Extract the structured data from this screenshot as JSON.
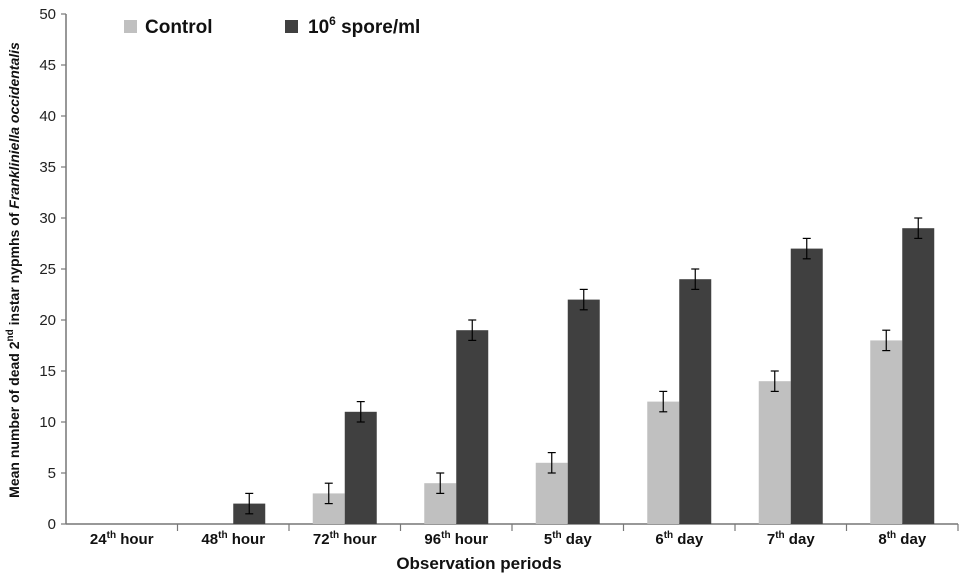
{
  "chart_data": {
    "type": "bar",
    "xlabel": "Observation periods",
    "ylabel": {
      "prefix": "Mean number of dead 2",
      "sup": "nd",
      "middle": " instar  nypmhs of ",
      "italic": "Frankliniella occidentalis"
    },
    "ylim": [
      0,
      50
    ],
    "yticks": [
      0,
      5,
      10,
      15,
      20,
      25,
      30,
      35,
      40,
      45,
      50
    ],
    "grid": false,
    "legend_position": "top-left",
    "categories": [
      {
        "base": "24",
        "sup": "th",
        "suffix": " hour"
      },
      {
        "base": "48",
        "sup": "th",
        "suffix": " hour"
      },
      {
        "base": "72",
        "sup": "th",
        "suffix": " hour"
      },
      {
        "base": "96",
        "sup": "th",
        "suffix": " hour"
      },
      {
        "base": "5",
        "sup": "th",
        "suffix": " day"
      },
      {
        "base": "6",
        "sup": "th",
        "suffix": " day"
      },
      {
        "base": "7",
        "sup": "th",
        "suffix": " day"
      },
      {
        "base": "8",
        "sup": "th",
        "suffix": " day"
      }
    ],
    "series": [
      {
        "name": "Control",
        "legend_label": {
          "base": "Control",
          "sup": "",
          "suffix": ""
        },
        "color": "#c0c0c0",
        "values": [
          0,
          0,
          3,
          4,
          6,
          12,
          14,
          18
        ],
        "errors": [
          0,
          0,
          1,
          1,
          1,
          1,
          1,
          1
        ]
      },
      {
        "name": "10^6 spore/ml",
        "legend_label": {
          "base": "10",
          "sup": "6",
          "suffix": " spore/ml"
        },
        "color": "#404040",
        "values": [
          0,
          2,
          11,
          19,
          22,
          24,
          27,
          29
        ],
        "errors": [
          0,
          1,
          1,
          1,
          1,
          1,
          1,
          1
        ]
      }
    ]
  }
}
